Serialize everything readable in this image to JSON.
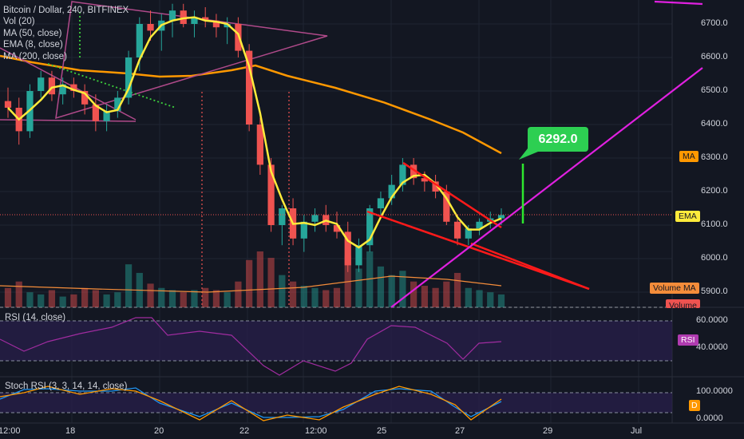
{
  "legend": {
    "symbol": "Bitcoin / Dollar, 240, BITFINEX",
    "vol": "Vol (20)",
    "ma50": "MA (50, close)",
    "ema8": "EMA (8, close)",
    "ma200": "MA (200, close)"
  },
  "panes": {
    "rsi_label": "RSI (14, close)",
    "stoch_label": "Stoch RSI (3, 3, 14, 14, close)"
  },
  "tags": {
    "ma": "MA",
    "ema": "EMA",
    "volume_ma": "Volume MA",
    "volume": "Volume",
    "rsi": "RSI",
    "stoch_d": "D"
  },
  "callout": "6292.0",
  "axes": {
    "price_ticks": [
      "6700.0",
      "6600.0",
      "6500.0",
      "6400.0",
      "6300.0",
      "6200.0",
      "6100.0",
      "6000.0",
      "5900.0"
    ],
    "rsi_ticks": [
      "60.0000",
      "40.0000"
    ],
    "stoch_ticks": [
      "100.0000",
      "0.0000"
    ],
    "x_ticks": [
      "12:00",
      "18",
      "20",
      "22",
      "12:00",
      "25",
      "27",
      "29",
      "Jul"
    ]
  },
  "colors": {
    "background": "#131722",
    "up": "#26a69a",
    "down": "#ef5350",
    "ema": "#ffeb3b",
    "ma": "#ff9800",
    "trend_magenta": "#e020e0",
    "trend_red": "#ff1a1a",
    "callout": "#2dcf52"
  },
  "chart_data": {
    "type": "candlestick",
    "symbol": "Bitcoin / Dollar",
    "interval": "240",
    "exchange": "BITFINEX",
    "ylim": [
      5860,
      6760
    ],
    "ohlc": [
      [
        6470,
        6510,
        6420,
        6450
      ],
      [
        6450,
        6480,
        6340,
        6380
      ],
      [
        6380,
        6520,
        6360,
        6500
      ],
      [
        6500,
        6560,
        6480,
        6540
      ],
      [
        6540,
        6560,
        6470,
        6490
      ],
      [
        6490,
        6540,
        6460,
        6520
      ],
      [
        6520,
        6540,
        6480,
        6500
      ],
      [
        6500,
        6520,
        6430,
        6460
      ],
      [
        6460,
        6490,
        6380,
        6410
      ],
      [
        6410,
        6460,
        6380,
        6440
      ],
      [
        6440,
        6500,
        6420,
        6480
      ],
      [
        6480,
        6620,
        6460,
        6600
      ],
      [
        6600,
        6720,
        6560,
        6700
      ],
      [
        6700,
        6740,
        6650,
        6680
      ],
      [
        6680,
        6730,
        6620,
        6710
      ],
      [
        6710,
        6760,
        6660,
        6740
      ],
      [
        6740,
        6760,
        6690,
        6700
      ],
      [
        6700,
        6740,
        6660,
        6720
      ],
      [
        6720,
        6750,
        6690,
        6710
      ],
      [
        6710,
        6730,
        6660,
        6690
      ],
      [
        6690,
        6720,
        6640,
        6700
      ],
      [
        6700,
        6720,
        6600,
        6620
      ],
      [
        6620,
        6640,
        6380,
        6400
      ],
      [
        6400,
        6420,
        6250,
        6280
      ],
      [
        6280,
        6300,
        6080,
        6100
      ],
      [
        6100,
        6160,
        6040,
        6150
      ],
      [
        6150,
        6180,
        6040,
        6060
      ],
      [
        6060,
        6130,
        6020,
        6110
      ],
      [
        6110,
        6150,
        6080,
        6130
      ],
      [
        6130,
        6160,
        6080,
        6100
      ],
      [
        6100,
        6140,
        6060,
        6080
      ],
      [
        6080,
        6110,
        5960,
        5980
      ],
      [
        5980,
        6060,
        5960,
        6040
      ],
      [
        6040,
        6160,
        6020,
        6150
      ],
      [
        6150,
        6200,
        6130,
        6180
      ],
      [
        6180,
        6250,
        6160,
        6220
      ],
      [
        6220,
        6300,
        6200,
        6280
      ],
      [
        6280,
        6300,
        6220,
        6240
      ],
      [
        6240,
        6260,
        6200,
        6230
      ],
      [
        6230,
        6250,
        6180,
        6200
      ],
      [
        6200,
        6220,
        6100,
        6110
      ],
      [
        6110,
        6130,
        6040,
        6060
      ],
      [
        6060,
        6100,
        6040,
        6090
      ],
      [
        6090,
        6120,
        6070,
        6110
      ],
      [
        6110,
        6140,
        6090,
        6120
      ],
      [
        6120,
        6150,
        6100,
        6130
      ]
    ],
    "volume": [
      90,
      120,
      70,
      60,
      80,
      50,
      60,
      90,
      80,
      60,
      70,
      200,
      160,
      110,
      90,
      80,
      70,
      80,
      90,
      80,
      70,
      120,
      220,
      260,
      230,
      150,
      120,
      100,
      90,
      80,
      90,
      240,
      180,
      260,
      190,
      150,
      170,
      120,
      100,
      90,
      120,
      160,
      90,
      80,
      70,
      60
    ],
    "ema8_last": 6125,
    "ma50_last": 6310,
    "projection": {
      "label": "6292.0",
      "from": 6100,
      "to": 6292.0
    },
    "rsi_ticks": [
      60,
      40
    ],
    "stoch_ticks": [
      100,
      0
    ]
  }
}
